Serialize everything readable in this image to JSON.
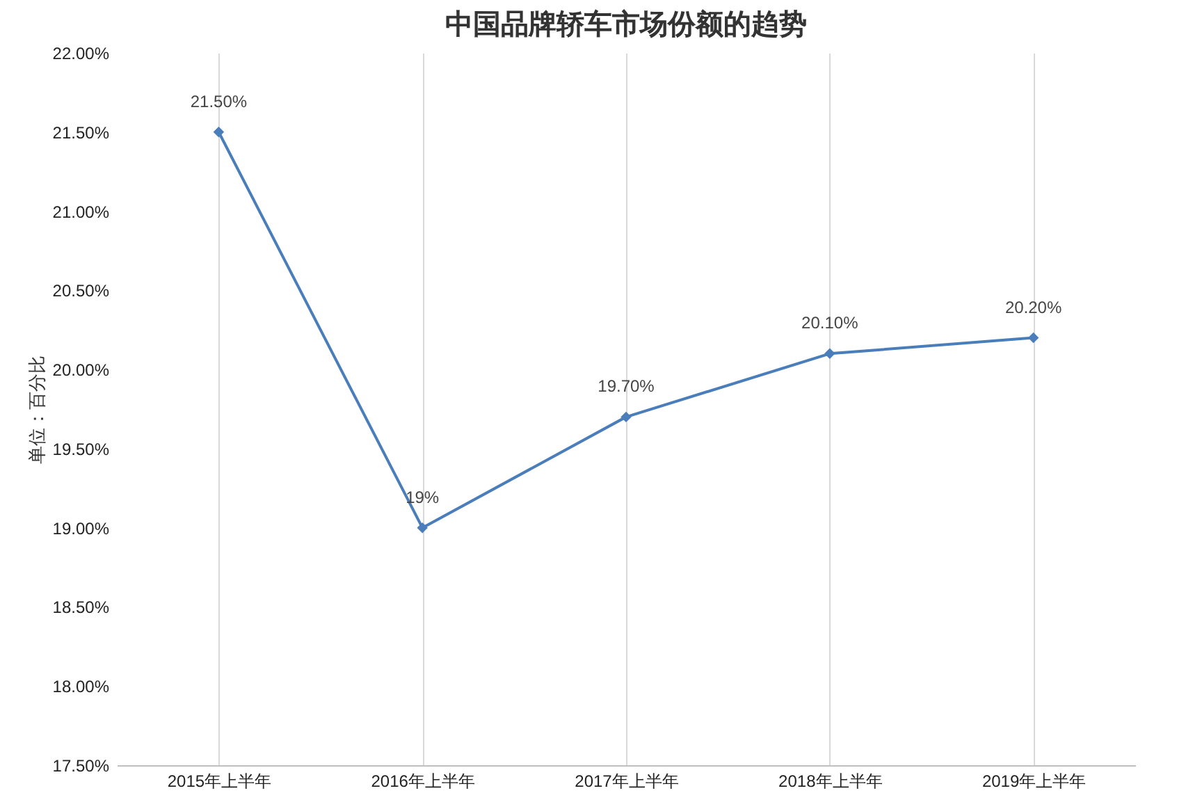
{
  "chart_data": {
    "type": "line",
    "title": "中国品牌轿车市场份额的趋势",
    "ylabel": "单位：百分比",
    "categories": [
      "2015年上半年",
      "2016年上半年",
      "2017年上半年",
      "2018年上半年",
      "2019年上半年"
    ],
    "series": [
      {
        "color": "#4a7ebb",
        "values": [
          21.5,
          19,
          19.7,
          20.1,
          20.2
        ],
        "value_labels": [
          "21.50%",
          "19%",
          "19.70%",
          "20.10%",
          "20.20%"
        ]
      }
    ],
    "ylim": [
      17.5,
      22
    ],
    "yticks": [
      {
        "value": 17.5,
        "label": "17.50%"
      },
      {
        "value": 18,
        "label": "18.00%"
      },
      {
        "value": 18.5,
        "label": "18.50%"
      },
      {
        "value": 19,
        "label": "19.00%"
      },
      {
        "value": 19.5,
        "label": "19.50%"
      },
      {
        "value": 20,
        "label": "20.00%"
      },
      {
        "value": 20.5,
        "label": "20.50%"
      },
      {
        "value": 21,
        "label": "21.00%"
      },
      {
        "value": 21.5,
        "label": "21.50%"
      },
      {
        "value": 22,
        "label": "22.00%"
      }
    ],
    "grid": "x",
    "marker": "diamond",
    "line_style": "solid"
  }
}
